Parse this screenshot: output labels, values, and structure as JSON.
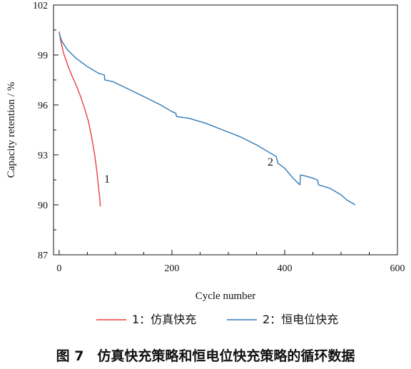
{
  "chart_data": {
    "type": "line",
    "xlabel": "Cycle number",
    "ylabel": "Capacity retention / %",
    "xlim": [
      -10,
      600
    ],
    "ylim": [
      87,
      102
    ],
    "xticks": [
      0,
      200,
      400,
      600
    ],
    "yticks": [
      87,
      90,
      93,
      96,
      99,
      102
    ],
    "xtick_labels": [
      "0",
      "200",
      "400",
      "600"
    ],
    "ytick_labels": [
      "87",
      "90",
      "93",
      "96",
      "99",
      "102"
    ],
    "grid": false,
    "legend_position": "bottom",
    "series": [
      {
        "name": "1：仿真快充",
        "label": "1",
        "color": "#e8413c",
        "x": [
          0,
          3,
          8,
          15,
          22,
          30,
          38,
          45,
          52,
          58,
          63,
          67,
          70,
          72,
          73
        ],
        "y": [
          100.4,
          99.8,
          99.1,
          98.4,
          97.8,
          97.2,
          96.5,
          95.8,
          95.0,
          94.0,
          93.0,
          92.0,
          91.0,
          90.4,
          89.9
        ]
      },
      {
        "name": "2：恒电位快充",
        "label": "2",
        "color": "#2f7ab8",
        "x": [
          0,
          5,
          15,
          30,
          50,
          70,
          80,
          81,
          95,
          120,
          150,
          180,
          200,
          207,
          208,
          230,
          260,
          290,
          320,
          350,
          370,
          385,
          388,
          400,
          415,
          427,
          428,
          440,
          450,
          458,
          460,
          480,
          500,
          510,
          525
        ],
        "y": [
          100.3,
          99.8,
          99.3,
          98.8,
          98.3,
          97.9,
          97.8,
          97.5,
          97.4,
          97.0,
          96.5,
          96.0,
          95.6,
          95.5,
          95.3,
          95.2,
          94.9,
          94.5,
          94.1,
          93.6,
          93.2,
          92.9,
          92.5,
          92.2,
          91.6,
          91.2,
          91.8,
          91.7,
          91.6,
          91.5,
          91.2,
          91.0,
          90.6,
          90.3,
          90.0
        ]
      }
    ],
    "annotations": [
      {
        "text": "1",
        "series": 0
      },
      {
        "text": "2",
        "series": 1
      }
    ]
  },
  "caption": "图 7　仿真快充策略和恒电位快充策略的循环数据"
}
